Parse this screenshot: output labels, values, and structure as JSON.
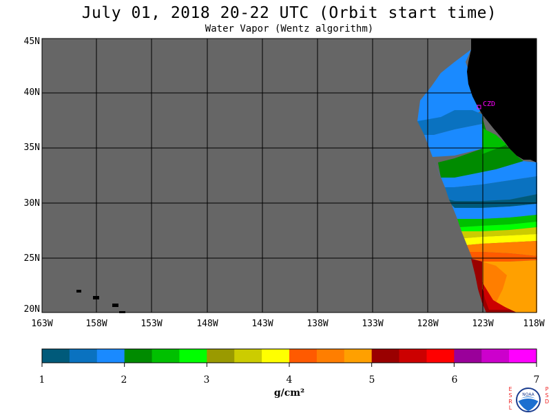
{
  "title": "July 01, 2018  20-22 UTC  (Orbit start time)",
  "subtitle": "Water Vapor (Wentz algorithm)",
  "map": {
    "lat_labels": [
      "45N",
      "40N",
      "35N",
      "30N",
      "25N",
      "20N"
    ],
    "lon_labels": [
      "163W",
      "158W",
      "153W",
      "148W",
      "143W",
      "138W",
      "133W",
      "128W",
      "123W",
      "118W"
    ],
    "station": "CZD",
    "colors": {
      "no_data": "#666666",
      "land": "#000000",
      "grid": "#000000",
      "station": "#ff00ff"
    }
  },
  "colorbar": {
    "ticks": [
      "1",
      "2",
      "3",
      "4",
      "5",
      "6",
      "7"
    ],
    "unit": "g/cm²",
    "colors": [
      "#005a7a",
      "#0a72c0",
      "#1a8aff",
      "#008b00",
      "#00c000",
      "#00ff00",
      "#9a9a00",
      "#cccc00",
      "#ffff00",
      "#ff5a00",
      "#ff7e00",
      "#ffa000",
      "#9a0000",
      "#cc0000",
      "#ff0000",
      "#9a009a",
      "#cc00cc",
      "#ff00ff"
    ]
  },
  "logo": {
    "left_letters": "ESRL",
    "right_letters": "PSD",
    "badge": "NOAA"
  }
}
